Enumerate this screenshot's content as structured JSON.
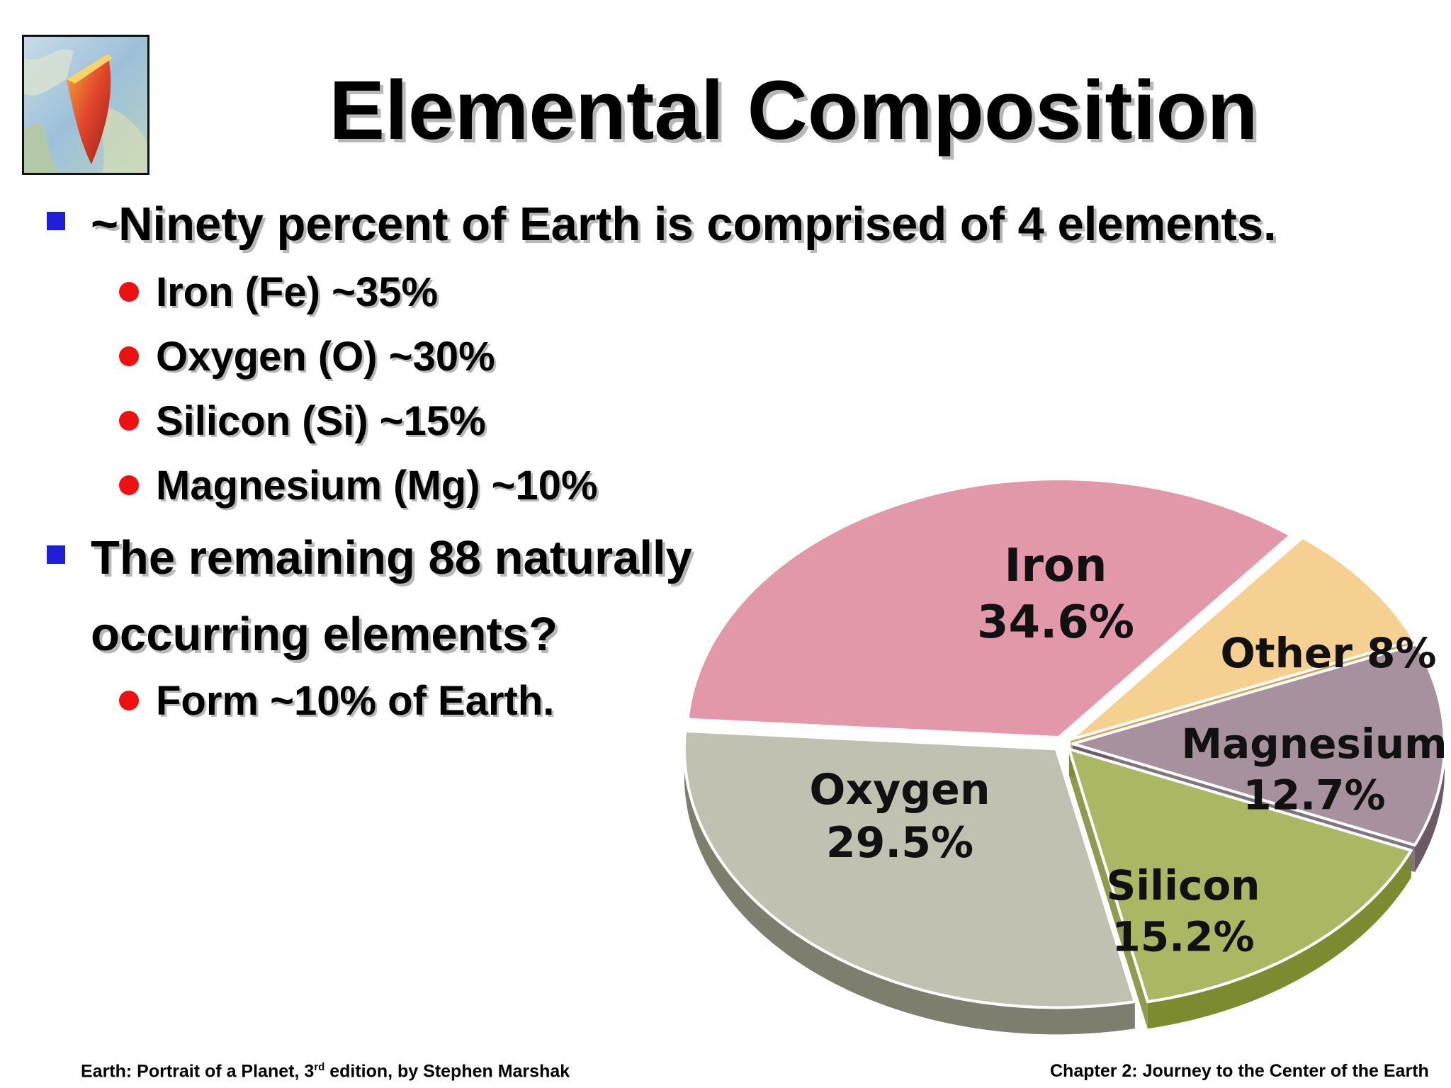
{
  "slide": {
    "title": "Elemental Composition",
    "bullets": [
      {
        "text": "~Ninety percent of Earth is comprised of 4 elements.",
        "subitems": [
          "Iron (Fe) ~35%",
          "Oxygen (O) ~30%",
          "Silicon (Si) ~15%",
          "Magnesium (Mg) ~10%"
        ]
      },
      {
        "text_line1": "The remaining 88 naturally",
        "text_line2": "occurring elements?",
        "subitems": [
          "Form ~10% of Earth."
        ]
      }
    ]
  },
  "footer": {
    "left_prefix": "Earth: Portrait of a Planet, 3",
    "left_sup": "rd",
    "left_suffix": " edition, by Stephen Marshak",
    "right": "Chapter 2: Journey to the Center of the Earth"
  },
  "chart_data": {
    "type": "pie",
    "title": "",
    "style": "3d-exploded",
    "slices": [
      {
        "name": "Iron",
        "value": 34.6,
        "label_name": "Iron",
        "label_value": "34.6%",
        "color": "#e398aa",
        "side": "#b5404f"
      },
      {
        "name": "Other",
        "value": 8,
        "label_name": "Other 8%",
        "label_value": "",
        "color": "#f6d090",
        "side": "#c98f3a"
      },
      {
        "name": "Magnesium",
        "value": 12.7,
        "label_name": "Magnesium",
        "label_value": "12.7%",
        "color": "#a7919f",
        "side": "#6b5a66"
      },
      {
        "name": "Silicon",
        "value": 15.2,
        "label_name": "Silicon",
        "label_value": "15.2%",
        "color": "#abb762",
        "side": "#7c8a30"
      },
      {
        "name": "Oxygen",
        "value": 29.5,
        "label_name": "Oxygen",
        "label_value": "29.5%",
        "color": "#c1c1b1",
        "side": "#7d7e6e"
      }
    ]
  }
}
